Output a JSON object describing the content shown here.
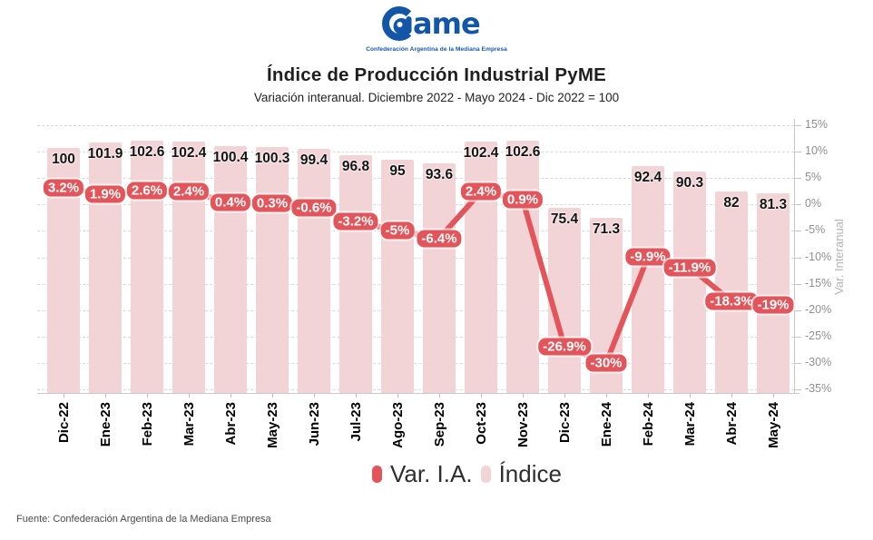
{
  "header": {
    "logo_text": "ame",
    "logo_tagline": "Confederación Argentina de la Mediana Empresa",
    "title": "Índice de Producción Industrial PyME",
    "subtitle": "Variación interanual. Diciembre 2022 - Mayo 2024 - Dic 2022 = 100"
  },
  "legend": {
    "items": [
      {
        "label": "Var. I.A.",
        "color": "#e2555a"
      },
      {
        "label": "Índice",
        "color": "#f2d4d7"
      }
    ]
  },
  "footer": {
    "source": "Fuente: Confederación Argentina de la Mediana Empresa"
  },
  "chart_data": {
    "type": "combo",
    "categories": [
      "Dic-22",
      "Ene-23",
      "Feb-23",
      "Mar-23",
      "Abr-23",
      "May-23",
      "Jun-23",
      "Jul-23",
      "Ago-23",
      "Sep-23",
      "Oct-23",
      "Nov-23",
      "Dic-23",
      "Ene-24",
      "Feb-24",
      "Mar-24",
      "Abr-24",
      "May-24"
    ],
    "series": [
      {
        "name": "Var. I.A.",
        "type": "line",
        "unit": "%",
        "axis": "right",
        "color": "#e2555a",
        "values": [
          3.2,
          1.9,
          2.6,
          2.4,
          0.4,
          0.3,
          -0.6,
          -3.2,
          -5,
          -6.4,
          2.4,
          0.9,
          -26.9,
          -30,
          -9.9,
          -11.9,
          -18.3,
          -19
        ],
        "labels": [
          "3.2%",
          "1.9%",
          "2.6%",
          "2.4%",
          "0.4%",
          "0.3%",
          "-0.6%",
          "-3.2%",
          "-5%",
          "-6.4%",
          "2.4%",
          "0.9%",
          "-26.9%",
          "-30%",
          "-9.9%",
          "-11.9%",
          "-18.3%",
          "-19%"
        ]
      },
      {
        "name": "Índice",
        "type": "bar",
        "axis": "hidden",
        "base": "Dic 2022 = 100",
        "color": "#f2d4d7",
        "values": [
          100,
          101.9,
          102.6,
          102.4,
          100.4,
          100.3,
          99.4,
          96.8,
          95,
          93.6,
          102.4,
          102.6,
          75.4,
          71.3,
          92.4,
          90.3,
          82,
          81.3
        ],
        "labels": [
          "100",
          "101.9",
          "102.6",
          "102.4",
          "100.4",
          "100.3",
          "99.4",
          "96.8",
          "95",
          "93.6",
          "102.4",
          "102.6",
          "75.4",
          "71.3",
          "92.4",
          "90.3",
          "82",
          "81.3"
        ]
      }
    ],
    "y_axis_right": {
      "title": "Var. Interanual",
      "ticks": [
        "15%",
        "10%",
        "5%",
        "0%",
        "-5%",
        "-10%",
        "-15%",
        "-20%",
        "-25%",
        "-30%",
        "-35%"
      ],
      "range": [
        15,
        -35
      ],
      "grid": "dashed"
    },
    "x_axis": {
      "labels_rotated": true
    },
    "title": "Índice de Producción Industrial PyME",
    "subtitle": "Variación interanual. Diciembre 2022 - Mayo 2024 - Dic 2022 = 100"
  }
}
